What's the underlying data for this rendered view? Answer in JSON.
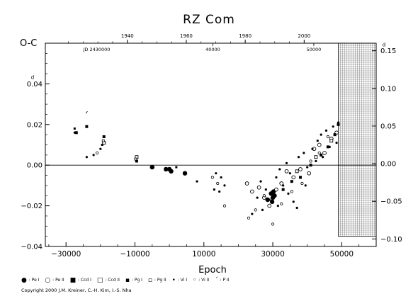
{
  "chart_data": {
    "type": "scatter",
    "title": "RZ  Com",
    "ylabel": "O-C",
    "xlabel": "Epoch",
    "xlim": [
      -36000,
      60000
    ],
    "ylim": [
      -0.04,
      0.06
    ],
    "x_ticks": [
      -30000,
      -10000,
      10000,
      30000,
      50000
    ],
    "x_tick_labels": [
      "−30000",
      "−10000",
      "10000",
      "30000",
      "50000"
    ],
    "y_ticks": [
      -0.04,
      -0.02,
      0.0,
      0.02,
      0.04
    ],
    "y_tick_labels": [
      "−0.04",
      "−0.02",
      "0.00",
      "0.02",
      "0.04"
    ],
    "y_unit_mark": "d",
    "top_year_axis": {
      "years": [
        1940,
        1960,
        1980,
        2000
      ],
      "epochs": [
        -12200,
        4900,
        22000,
        39100
      ]
    },
    "jd_axis": {
      "label": "JD 2430000",
      "labels": [
        "40000",
        "50000"
      ],
      "epochs": [
        12600,
        41900
      ]
    },
    "right_axis": {
      "ylim": [
        -0.11,
        0.16
      ],
      "ticks": [
        -0.1,
        -0.05,
        0.0,
        0.05,
        0.1,
        0.15
      ],
      "tick_labels": [
        "−0.10",
        "−0.05",
        "0.00",
        "0.05",
        "0.10",
        "0.15"
      ],
      "unit_mark": "d"
    },
    "prediction_grid_start": 49000,
    "zero_line": 0.0,
    "legend": [
      "Pe I",
      "Pe II",
      "Ccd I",
      "Ccd II",
      "Pg I",
      "Pg II",
      "Vi I",
      "Vi II",
      "P II"
    ],
    "copyright": "Copyright 2000 J.M. Kreiner, C.-H. Kim, I.-S. Nha",
    "series": [
      {
        "name": "Pe I",
        "marker": "filled-circle-large",
        "x": [
          -5000,
          -1000,
          0,
          500,
          4500,
          29500,
          30000,
          30500,
          29800,
          30200,
          28500
        ],
        "y": [
          -0.001,
          -0.002,
          -0.002,
          -0.003,
          -0.004,
          -0.014,
          -0.016,
          -0.015,
          -0.018,
          -0.013,
          -0.017
        ]
      },
      {
        "name": "Pe II",
        "marker": "open-circle",
        "x": [
          22500,
          24000,
          26000,
          27500,
          29000,
          31000,
          32500,
          34000,
          36000,
          38000,
          40500,
          42000,
          43500,
          45000,
          47000,
          48500
        ],
        "y": [
          -0.009,
          -0.013,
          -0.011,
          -0.016,
          -0.02,
          -0.012,
          -0.009,
          -0.003,
          -0.006,
          -0.002,
          -0.004,
          0.008,
          0.01,
          0.006,
          0.013,
          0.016
        ]
      },
      {
        "name": "Ccd I",
        "marker": "filled-square",
        "x": [
          -27000,
          -24000,
          -19000,
          -9500,
          30500,
          33000,
          35500,
          38000,
          41000,
          44000,
          46000,
          48000,
          49000
        ],
        "y": [
          0.016,
          0.019,
          0.014,
          0.002,
          -0.015,
          -0.012,
          -0.008,
          -0.006,
          0.0,
          0.005,
          0.009,
          0.015,
          0.02
        ]
      },
      {
        "name": "Ccd II",
        "marker": "open-square",
        "x": [
          -19000,
          -9500,
          37000,
          42500,
          47000
        ],
        "y": [
          0.011,
          0.004,
          -0.003,
          0.004,
          0.012
        ]
      },
      {
        "name": "Pg I",
        "marker": "filled-square-small",
        "x": [
          -27500,
          -19500,
          2000
        ],
        "y": [
          0.018,
          0.01,
          -0.001
        ]
      },
      {
        "name": "Pg II",
        "marker": "open-square-small",
        "x": [
          -19200,
          -9800
        ],
        "y": [
          0.012,
          0.003
        ]
      },
      {
        "name": "Vi I",
        "marker": "filled-dot",
        "x": [
          -27500,
          -22000,
          -20000,
          -24000,
          8000,
          13000,
          15000,
          16000,
          14500,
          13500,
          24000,
          25500,
          26500,
          27000,
          28000,
          29000,
          31000,
          32000,
          33000,
          34000,
          35000,
          36000,
          37500,
          39000,
          40000,
          41500,
          42500,
          43000,
          44500,
          45500,
          46500,
          47500,
          48500,
          49000,
          31500,
          34500,
          39500,
          44000,
          37000
        ],
        "y": [
          0.016,
          0.005,
          0.008,
          0.004,
          -0.008,
          -0.012,
          -0.006,
          -0.01,
          -0.013,
          -0.004,
          -0.024,
          -0.016,
          -0.008,
          -0.022,
          -0.012,
          -0.017,
          -0.006,
          -0.002,
          -0.01,
          0.001,
          -0.004,
          -0.018,
          0.004,
          0.006,
          -0.001,
          0.008,
          0.002,
          0.012,
          0.004,
          0.017,
          0.009,
          0.019,
          0.011,
          0.021,
          -0.02,
          -0.014,
          -0.01,
          0.015,
          -0.021
        ]
      },
      {
        "name": "Vi II",
        "marker": "open-dot",
        "x": [
          -21000,
          12500,
          14000,
          16000,
          23000,
          25000,
          27500,
          30000,
          32500,
          35500,
          38500,
          41000,
          43500,
          46000
        ],
        "y": [
          0.006,
          -0.006,
          -0.009,
          -0.02,
          -0.026,
          -0.022,
          -0.015,
          -0.029,
          -0.019,
          -0.013,
          -0.009,
          0.002,
          0.006,
          0.014
        ]
      },
      {
        "name": "P II",
        "marker": "tick",
        "x": [
          -24000
        ],
        "y": [
          0.026
        ]
      }
    ]
  }
}
